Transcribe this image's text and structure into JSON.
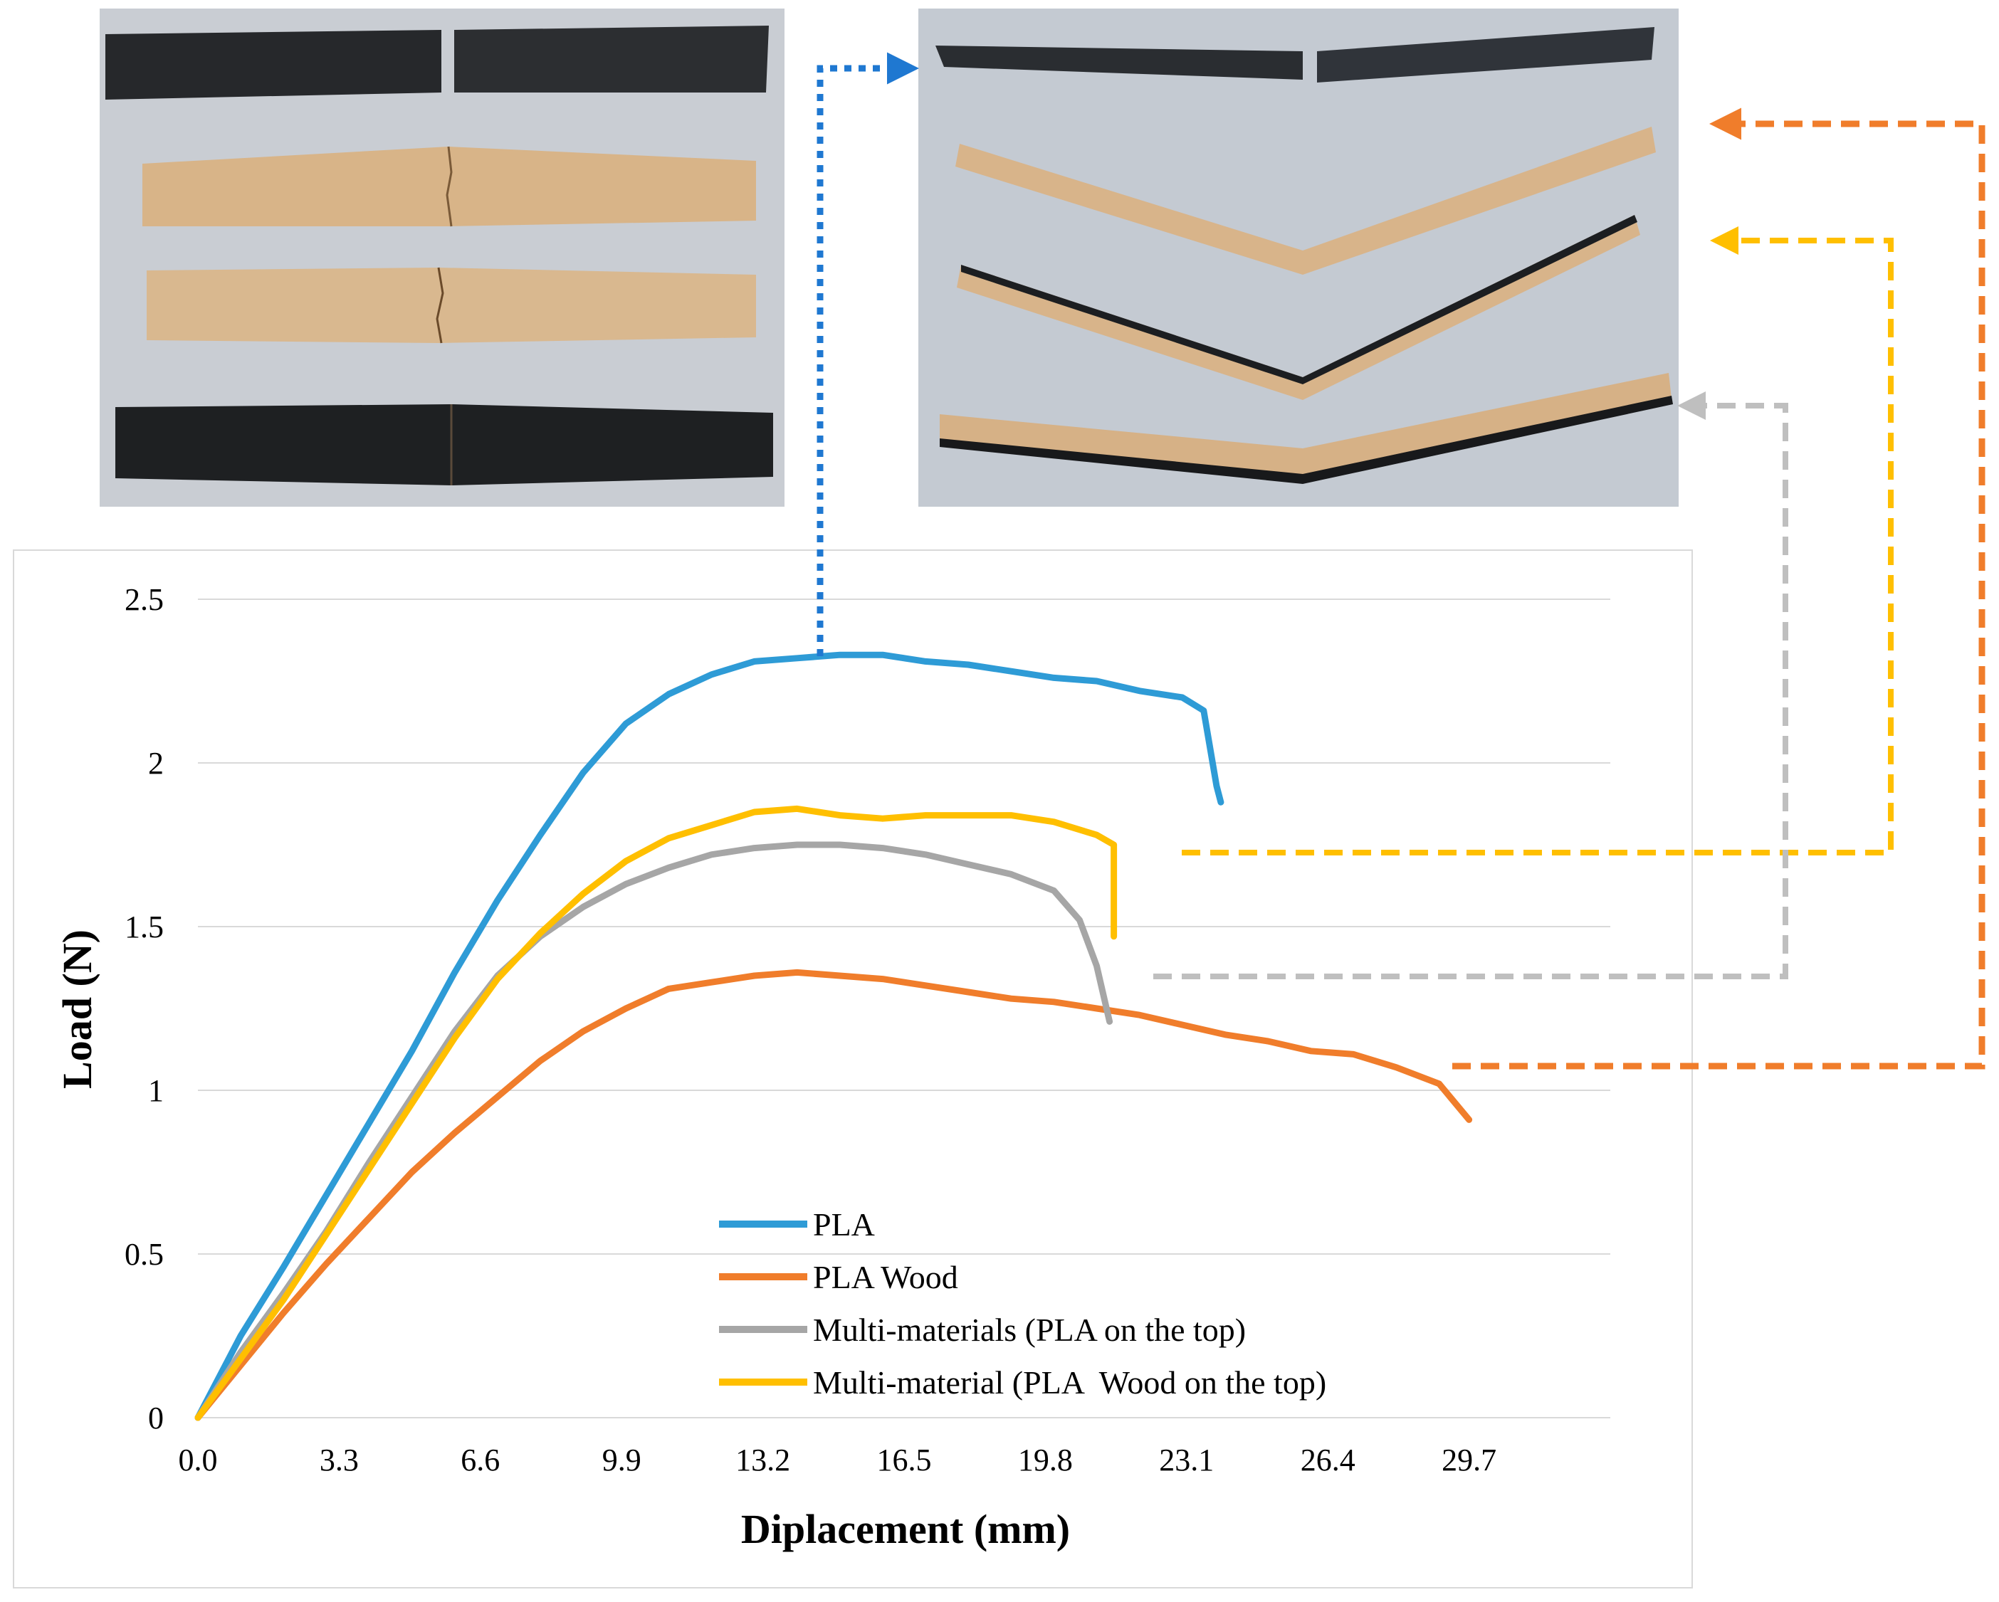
{
  "chart_data": {
    "type": "line",
    "xlabel": "Diplacement (mm)",
    "ylabel": "Load (N)",
    "xlim": [
      0,
      33
    ],
    "ylim": [
      0,
      2.5
    ],
    "xticks": [
      "0.0",
      "3.3",
      "6.6",
      "9.9",
      "13.2",
      "16.5",
      "19.8",
      "23.1",
      "26.4",
      "29.7"
    ],
    "yticks": [
      "0",
      "0.5",
      "1",
      "1.5",
      "2",
      "2.5"
    ],
    "grid": "horizontal",
    "legend_position": "bottom-center",
    "series": [
      {
        "name": "PLA",
        "color": "#2e9bd6",
        "x": [
          0,
          1,
          2,
          3,
          4,
          5,
          6,
          7,
          8,
          9,
          10,
          11,
          12,
          13,
          14,
          15,
          16,
          17,
          18,
          19,
          20,
          21,
          22,
          23,
          23.5,
          23.8,
          23.9
        ],
        "y": [
          0,
          0.25,
          0.46,
          0.68,
          0.9,
          1.12,
          1.36,
          1.58,
          1.78,
          1.97,
          2.12,
          2.21,
          2.27,
          2.31,
          2.32,
          2.33,
          2.33,
          2.31,
          2.3,
          2.28,
          2.26,
          2.25,
          2.22,
          2.2,
          2.16,
          1.93,
          1.88
        ]
      },
      {
        "name": "PLA Wood",
        "color": "#f07d2b",
        "x": [
          0,
          1,
          2,
          3,
          4,
          5,
          6,
          7,
          8,
          9,
          10,
          11,
          12,
          13,
          14,
          15,
          16,
          17,
          18,
          19,
          20,
          21,
          22,
          23,
          24,
          25,
          26,
          27,
          28,
          29,
          29.7
        ],
        "y": [
          0,
          0.16,
          0.32,
          0.47,
          0.61,
          0.75,
          0.87,
          0.98,
          1.09,
          1.18,
          1.25,
          1.31,
          1.33,
          1.35,
          1.36,
          1.35,
          1.34,
          1.32,
          1.3,
          1.28,
          1.27,
          1.25,
          1.23,
          1.2,
          1.17,
          1.15,
          1.12,
          1.11,
          1.07,
          1.02,
          0.91
        ]
      },
      {
        "name": "Multi-materials (PLA on the top)",
        "color": "#a6a6a6",
        "x": [
          0,
          1,
          2,
          3,
          4,
          5,
          6,
          7,
          8,
          9,
          10,
          11,
          12,
          13,
          14,
          15,
          16,
          17,
          18,
          19,
          20,
          20.6,
          21,
          21.3
        ],
        "y": [
          0,
          0.2,
          0.38,
          0.57,
          0.78,
          0.98,
          1.18,
          1.35,
          1.47,
          1.56,
          1.63,
          1.68,
          1.72,
          1.74,
          1.75,
          1.75,
          1.74,
          1.72,
          1.69,
          1.66,
          1.61,
          1.52,
          1.38,
          1.21
        ]
      },
      {
        "name": "Multi-material (PLA  Wood on the top)",
        "color": "#ffbf00",
        "x": [
          0,
          1,
          2,
          3,
          4,
          5,
          6,
          7,
          8,
          9,
          10,
          11,
          12,
          13,
          14,
          15,
          16,
          17,
          18,
          19,
          20,
          21,
          21.4,
          21.4
        ],
        "y": [
          0,
          0.18,
          0.36,
          0.56,
          0.76,
          0.96,
          1.16,
          1.34,
          1.48,
          1.6,
          1.7,
          1.77,
          1.81,
          1.85,
          1.86,
          1.84,
          1.83,
          1.84,
          1.84,
          1.84,
          1.82,
          1.78,
          1.75,
          1.47
        ]
      }
    ]
  },
  "photos": {
    "left": "broken specimen photo",
    "right": "bent specimen photo"
  }
}
